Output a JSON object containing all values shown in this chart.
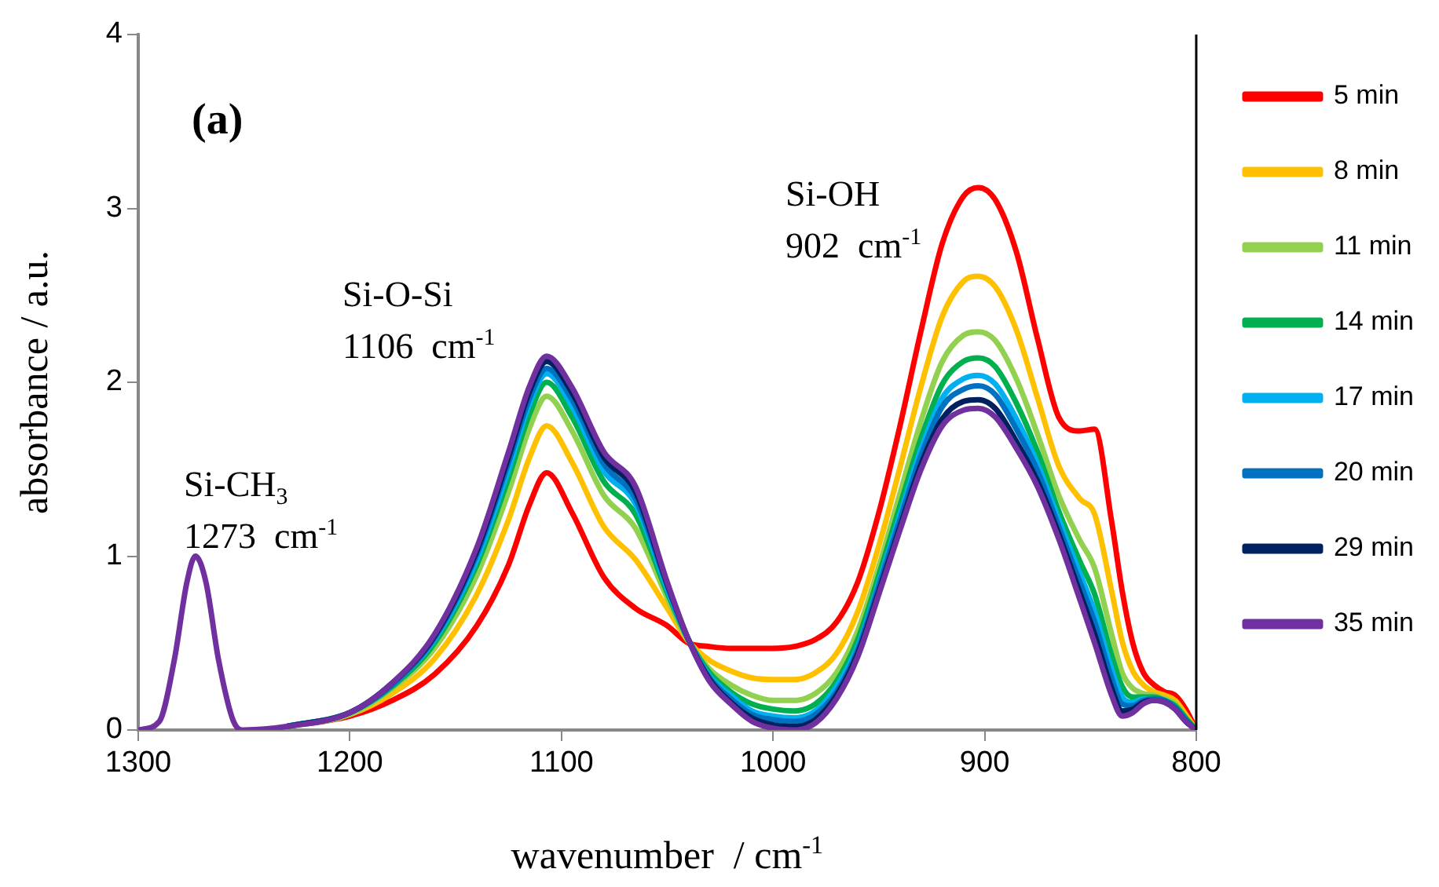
{
  "chart_data": {
    "type": "line",
    "xlabel": "wavenumber  / cm$^{-1}$",
    "ylabel": "absorbance / a.u.",
    "x": [
      1300,
      1290,
      1283,
      1277,
      1273,
      1268,
      1262,
      1255,
      1250,
      1230,
      1200,
      1180,
      1160,
      1140,
      1125,
      1115,
      1107,
      1095,
      1080,
      1065,
      1050,
      1040,
      1030,
      1020,
      1010,
      1000,
      990,
      980,
      970,
      960,
      950,
      940,
      930,
      920,
      910,
      903,
      895,
      885,
      875,
      865,
      855,
      848,
      840,
      835,
      830,
      825,
      820,
      815,
      810,
      805,
      800
    ],
    "xlim": [
      1300,
      800
    ],
    "xticks": [
      1300,
      1200,
      1100,
      1000,
      900,
      800
    ],
    "ylim": [
      0,
      4
    ],
    "yticks": [
      0,
      1,
      2,
      3,
      4
    ],
    "legend": "right",
    "annotations": [
      "(a)",
      "Si-CH$_{3}$\n1273  cm$^{-1}$",
      "Si-O-Si\n1106  cm$^{-1}$",
      "Si-OH\n902  cm$^{-1}$"
    ],
    "series": [
      {
        "name": "5 min",
        "color": "#ff0000",
        "values": [
          null,
          null,
          null,
          null,
          null,
          null,
          null,
          null,
          null,
          0.02,
          0.08,
          0.17,
          0.32,
          0.6,
          0.95,
          1.3,
          1.48,
          1.25,
          0.88,
          0.7,
          0.6,
          0.5,
          0.48,
          0.47,
          0.47,
          0.47,
          0.48,
          0.52,
          0.62,
          0.85,
          1.25,
          1.75,
          2.3,
          2.8,
          3.07,
          3.12,
          3.05,
          2.75,
          2.25,
          1.8,
          1.72,
          1.73,
          1.2,
          0.8,
          0.5,
          0.33,
          0.26,
          0.22,
          0.2,
          0.12,
          0
        ]
      },
      {
        "name": "8 min",
        "color": "#ffc000",
        "values": [
          null,
          null,
          null,
          null,
          null,
          null,
          null,
          null,
          null,
          0.02,
          0.09,
          0.21,
          0.41,
          0.78,
          1.21,
          1.57,
          1.75,
          1.54,
          1.17,
          0.98,
          0.7,
          0.51,
          0.4,
          0.34,
          0.3,
          0.29,
          0.29,
          0.33,
          0.44,
          0.68,
          1.06,
          1.51,
          1.98,
          2.38,
          2.58,
          2.61,
          2.55,
          2.3,
          1.91,
          1.52,
          1.33,
          1.24,
          0.8,
          0.51,
          0.34,
          0.26,
          0.22,
          0.2,
          0.17,
          0.09,
          0
        ]
      },
      {
        "name": "11 min",
        "color": "#92d050",
        "values": [
          null,
          null,
          null,
          null,
          null,
          null,
          null,
          null,
          null,
          0.02,
          0.09,
          0.24,
          0.47,
          0.89,
          1.37,
          1.74,
          1.92,
          1.72,
          1.35,
          1.16,
          0.76,
          0.51,
          0.35,
          0.26,
          0.2,
          0.17,
          0.17,
          0.21,
          0.33,
          0.57,
          0.94,
          1.36,
          1.78,
          2.12,
          2.27,
          2.29,
          2.24,
          2.02,
          1.7,
          1.35,
          1.09,
          0.93,
          0.55,
          0.33,
          0.24,
          0.21,
          0.2,
          0.18,
          0.15,
          0.07,
          0
        ]
      },
      {
        "name": "14 min",
        "color": "#00b050",
        "values": [
          null,
          null,
          null,
          null,
          null,
          null,
          null,
          null,
          null,
          0.02,
          0.1,
          0.25,
          0.5,
          0.95,
          1.45,
          1.82,
          2.0,
          1.8,
          1.43,
          1.24,
          0.79,
          0.52,
          0.33,
          0.22,
          0.15,
          0.12,
          0.11,
          0.15,
          0.28,
          0.52,
          0.89,
          1.29,
          1.68,
          1.99,
          2.12,
          2.14,
          2.09,
          1.88,
          1.6,
          1.26,
          0.97,
          0.78,
          0.43,
          0.25,
          0.19,
          0.19,
          0.19,
          0.17,
          0.14,
          0.07,
          0
        ]
      },
      {
        "name": "17 min",
        "color": "#00b0f0",
        "values": [
          null,
          null,
          null,
          null,
          null,
          null,
          null,
          null,
          null,
          0.02,
          0.1,
          0.26,
          0.52,
          0.98,
          1.5,
          1.88,
          2.05,
          1.86,
          1.49,
          1.3,
          0.81,
          0.52,
          0.31,
          0.2,
          0.11,
          0.08,
          0.07,
          0.11,
          0.25,
          0.48,
          0.85,
          1.24,
          1.62,
          1.91,
          2.02,
          2.04,
          1.99,
          1.79,
          1.53,
          1.21,
          0.9,
          0.68,
          0.35,
          0.19,
          0.16,
          0.18,
          0.18,
          0.17,
          null,
          null,
          null
        ]
      },
      {
        "name": "20 min",
        "color": "#0070c0",
        "values": [
          null,
          null,
          null,
          null,
          null,
          null,
          null,
          null,
          null,
          0.02,
          0.1,
          0.26,
          0.53,
          1.01,
          1.54,
          1.91,
          2.08,
          1.9,
          1.53,
          1.33,
          0.83,
          0.52,
          0.3,
          0.18,
          0.09,
          0.06,
          0.05,
          0.09,
          0.22,
          0.46,
          0.83,
          1.21,
          1.58,
          1.86,
          1.96,
          1.98,
          1.93,
          1.73,
          1.49,
          1.17,
          0.85,
          0.62,
          0.3,
          0.15,
          0.14,
          0.17,
          0.18,
          0.17,
          0.13,
          0.06,
          0
        ]
      },
      {
        "name": "29 min",
        "color": "#002060",
        "values": [
          null,
          null,
          null,
          null,
          null,
          null,
          null,
          null,
          null,
          0.02,
          0.1,
          0.27,
          0.54,
          1.03,
          1.57,
          1.95,
          2.12,
          1.94,
          1.57,
          1.37,
          0.84,
          0.52,
          0.29,
          0.16,
          0.07,
          0.03,
          0.02,
          0.06,
          0.2,
          0.44,
          0.8,
          1.17,
          1.53,
          1.79,
          1.89,
          1.9,
          1.85,
          1.66,
          1.43,
          1.13,
          0.79,
          0.55,
          0.24,
          0.11,
          0.12,
          0.16,
          0.17,
          0.16,
          0.12,
          0.05,
          0
        ]
      },
      {
        "name": "35 min",
        "color": "#7030a0",
        "values": [
          0,
          0.05,
          0.4,
          0.85,
          1.0,
          0.85,
          0.4,
          0.05,
          0,
          0.02,
          0.1,
          0.27,
          0.55,
          1.05,
          1.6,
          1.98,
          2.15,
          1.97,
          1.6,
          1.4,
          0.85,
          0.52,
          0.28,
          0.15,
          0.05,
          0.01,
          0,
          0.04,
          0.18,
          0.42,
          0.78,
          1.15,
          1.5,
          1.75,
          1.84,
          1.85,
          1.8,
          1.62,
          1.4,
          1.1,
          0.75,
          0.5,
          0.2,
          0.08,
          0.1,
          0.15,
          0.17,
          0.16,
          0.12,
          0.05,
          0
        ]
      }
    ]
  }
}
